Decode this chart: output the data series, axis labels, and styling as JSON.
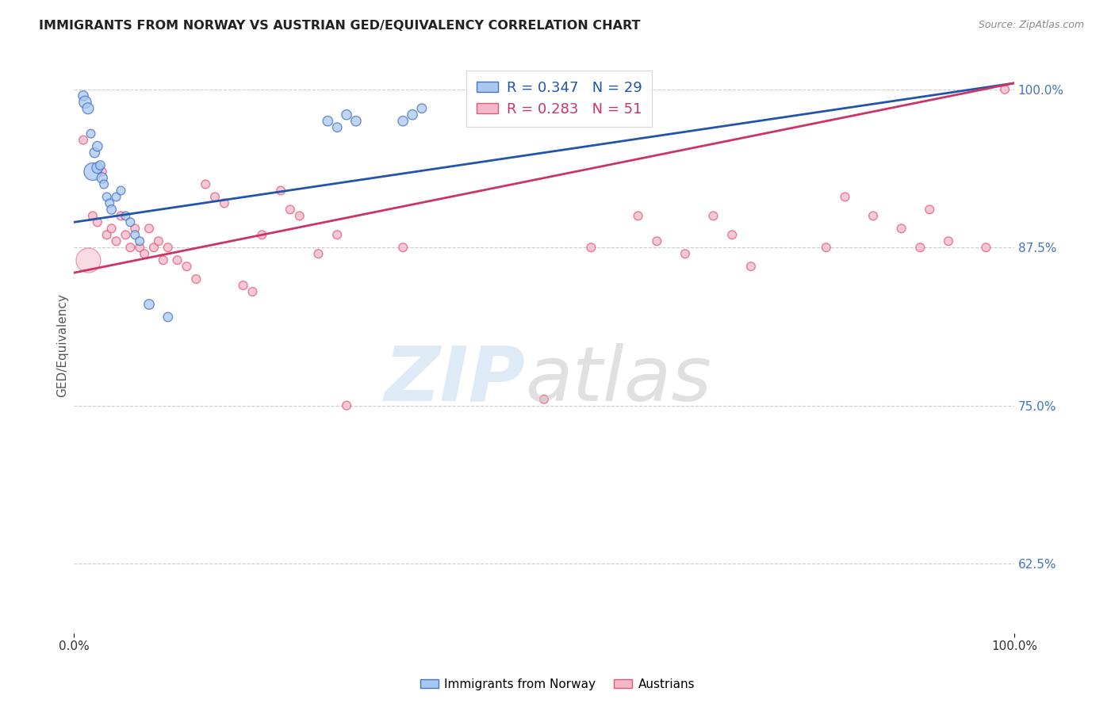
{
  "title": "IMMIGRANTS FROM NORWAY VS AUSTRIAN GED/EQUIVALENCY CORRELATION CHART",
  "source": "Source: ZipAtlas.com",
  "ylabel": "GED/Equivalency",
  "yticks": [
    100.0,
    87.5,
    75.0,
    62.5
  ],
  "ytick_labels": [
    "100.0%",
    "87.5%",
    "75.0%",
    "62.5%"
  ],
  "legend_blue": "R = 0.347   N = 29",
  "legend_pink": "R = 0.283   N = 51",
  "legend_label_blue": "Immigrants from Norway",
  "legend_label_pink": "Austrians",
  "blue_fill": "#a8c8f0",
  "pink_fill": "#f5b8ca",
  "blue_edge": "#4472c4",
  "pink_edge": "#e05878",
  "blue_line": "#2255aa",
  "pink_line": "#cc3366",
  "norway_x": [
    1.0,
    1.2,
    1.5,
    1.8,
    2.0,
    2.2,
    2.5,
    2.5,
    2.8,
    3.0,
    3.2,
    3.5,
    3.8,
    4.0,
    4.5,
    5.0,
    5.5,
    6.0,
    6.5,
    7.0,
    8.0,
    10.0,
    27.0,
    28.0,
    29.0,
    30.0,
    35.0,
    36.0,
    37.0
  ],
  "norway_y": [
    99.5,
    99.0,
    98.5,
    96.5,
    93.5,
    95.0,
    93.8,
    95.5,
    94.0,
    93.0,
    92.5,
    91.5,
    91.0,
    90.5,
    91.5,
    92.0,
    90.0,
    89.5,
    88.5,
    88.0,
    83.0,
    82.0,
    97.5,
    97.0,
    98.0,
    97.5,
    97.5,
    98.0,
    98.5
  ],
  "norway_sizes": [
    80,
    120,
    100,
    60,
    250,
    80,
    100,
    80,
    70,
    90,
    60,
    60,
    60,
    70,
    60,
    60,
    60,
    60,
    60,
    60,
    80,
    70,
    80,
    70,
    80,
    80,
    80,
    80,
    70
  ],
  "austrian_x": [
    1.0,
    2.0,
    2.5,
    3.0,
    3.5,
    4.0,
    4.5,
    5.0,
    5.5,
    6.0,
    6.5,
    7.0,
    7.5,
    8.0,
    8.5,
    9.0,
    9.5,
    10.0,
    11.0,
    12.0,
    13.0,
    14.0,
    15.0,
    16.0,
    18.0,
    19.0,
    20.0,
    22.0,
    23.0,
    24.0,
    26.0,
    28.0,
    29.0,
    35.0,
    50.0,
    55.0,
    60.0,
    62.0,
    65.0,
    68.0,
    70.0,
    72.0,
    80.0,
    82.0,
    85.0,
    88.0,
    90.0,
    91.0,
    93.0,
    97.0,
    99.0
  ],
  "austrian_y": [
    96.0,
    90.0,
    89.5,
    93.5,
    88.5,
    89.0,
    88.0,
    90.0,
    88.5,
    87.5,
    89.0,
    87.5,
    87.0,
    89.0,
    87.5,
    88.0,
    86.5,
    87.5,
    86.5,
    86.0,
    85.0,
    92.5,
    91.5,
    91.0,
    84.5,
    84.0,
    88.5,
    92.0,
    90.5,
    90.0,
    87.0,
    88.5,
    75.0,
    87.5,
    75.5,
    87.5,
    90.0,
    88.0,
    87.0,
    90.0,
    88.5,
    86.0,
    87.5,
    91.5,
    90.0,
    89.0,
    87.5,
    90.5,
    88.0,
    87.5,
    100.0
  ],
  "austrian_sizes": [
    60,
    60,
    60,
    60,
    60,
    60,
    60,
    60,
    60,
    60,
    60,
    60,
    60,
    60,
    60,
    60,
    60,
    60,
    60,
    60,
    60,
    60,
    60,
    60,
    60,
    60,
    60,
    60,
    60,
    60,
    60,
    60,
    60,
    60,
    60,
    60,
    60,
    60,
    60,
    60,
    60,
    60,
    60,
    60,
    60,
    60,
    60,
    60,
    60,
    60,
    60
  ],
  "big_pink_x": 1.5,
  "big_pink_y": 86.5,
  "big_pink_size": 500,
  "xmin": 0.0,
  "xmax": 100.0,
  "ymin": 57.0,
  "ymax": 102.5,
  "background_color": "#ffffff",
  "grid_color": "#cccccc",
  "blue_trendline_start_y": 89.5,
  "blue_trendline_end_y": 100.5,
  "pink_trendline_start_y": 85.5,
  "pink_trendline_end_y": 100.5
}
